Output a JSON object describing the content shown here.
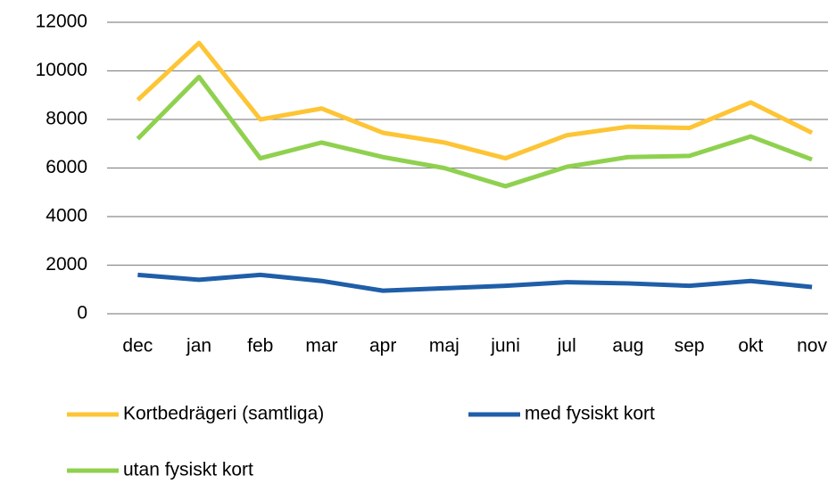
{
  "chart_data": {
    "type": "line",
    "categories": [
      "dec",
      "jan",
      "feb",
      "mar",
      "apr",
      "maj",
      "juni",
      "jul",
      "aug",
      "sep",
      "okt",
      "nov"
    ],
    "series": [
      {
        "name": "Kortbedrägeri (samtliga)",
        "color": "#fdc536",
        "values": [
          8800,
          11150,
          8000,
          8450,
          7450,
          7050,
          6400,
          7350,
          7700,
          7650,
          8700,
          7450
        ]
      },
      {
        "name": "med fysiskt kort",
        "color": "#1f5ea8",
        "values": [
          1600,
          1400,
          1600,
          1350,
          950,
          1050,
          1150,
          1300,
          1250,
          1150,
          1350,
          1100
        ]
      },
      {
        "name": "utan fysiskt kort",
        "color": "#8fd14f",
        "values": [
          7200,
          9750,
          6400,
          7050,
          6450,
          6000,
          5250,
          6050,
          6450,
          6500,
          7300,
          6350
        ]
      }
    ],
    "ylim": [
      0,
      12000
    ],
    "yticks": [
      0,
      2000,
      4000,
      6000,
      8000,
      10000,
      12000
    ],
    "grid": true,
    "legend": "bottom"
  }
}
